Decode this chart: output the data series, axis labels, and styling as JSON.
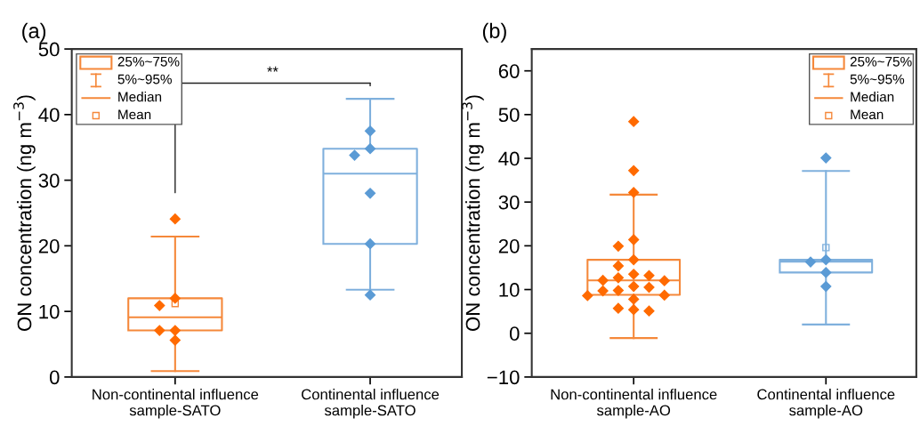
{
  "chart_data": [
    {
      "type": "box",
      "title": "(a)",
      "ylabel": "ON concentration (ng m$^{−3}$)",
      "categories": [
        "Non-continental influence\nsample-SATO",
        "Continental influence\nsample-SATO"
      ],
      "ylim": [
        0,
        50
      ],
      "yticks": [
        0,
        10,
        20,
        30,
        40,
        50
      ],
      "annotations": [
        "25%~75%",
        "5%~95%",
        "Median",
        "Mean",
        "**"
      ],
      "series": [
        {
          "colors": [
            "#f5883a",
            "#7fb0dd"
          ],
          "boxes": [
            {
              "low": 0.9,
              "q1": 7.1,
              "median": 9.1,
              "q3": 12.0,
              "high": 21.4,
              "mean": 11.2
            },
            {
              "low": 13.3,
              "q1": 20.3,
              "median": 31.0,
              "q3": 34.8,
              "high": 42.4
            }
          ]
        },
        {
          "type": "scatter",
          "color": "#ff6a00",
          "marker": "diamond",
          "x": [
            "Non-continental influence\nsample-SATO",
            "Non-continental influence\nsample-SATO",
            "Non-continental influence\nsample-SATO",
            "Non-continental influence\nsample-SATO",
            "Non-continental influence\nsample-SATO",
            "Non-continental influence\nsample-SATO"
          ],
          "values": [
            24.1,
            12.0,
            10.9,
            7.1,
            7.1,
            5.6
          ]
        },
        {
          "type": "scatter",
          "color": "#5b9bd5",
          "marker": "diamond",
          "x": [
            "Continental influence\nsample-SATO",
            "Continental influence\nsample-SATO",
            "Continental influence\nsample-SATO",
            "Continental influence\nsample-SATO",
            "Continental influence\nsample-SATO",
            "Continental influence\nsample-SATO"
          ],
          "values": [
            37.5,
            34.8,
            33.8,
            28.0,
            20.3,
            12.5
          ]
        }
      ]
    },
    {
      "type": "box",
      "title": "(b)",
      "ylabel": "ON concentration (ng m$^{−3}$)",
      "categories": [
        "Non-continental influence\nsample-AO",
        "Continental influence\nsample-AO"
      ],
      "ylim": [
        -10,
        65
      ],
      "yticks": [
        {
          "value": -10,
          "label": "−10"
        },
        0,
        10,
        20,
        30,
        40,
        50,
        60
      ],
      "annotations": [
        "25%~75%",
        "5%~95%",
        "Median",
        "Mean"
      ],
      "series": [
        {
          "colors": [
            "#f5883a",
            "#7fb0dd"
          ],
          "boxes": [
            {
              "low": -1.1,
              "q1": 8.8,
              "median": 12.1,
              "q3": 16.8,
              "high": 31.7
            },
            {
              "low": 2.0,
              "q1": 13.9,
              "median": 16.4,
              "q3": 16.8,
              "high": 37.1,
              "mean": 19.6
            }
          ]
        },
        {
          "type": "scatter",
          "color": "#ff6a00",
          "marker": "diamond",
          "x": [
            "Non-continental influence\nsample-AO",
            "Non-continental influence\nsample-AO",
            "Non-continental influence\nsample-AO",
            "Non-continental influence\nsample-AO",
            "Non-continental influence\nsample-AO",
            "Non-continental influence\nsample-AO",
            "Non-continental influence\nsample-AO",
            "Non-continental influence\nsample-AO",
            "Non-continental influence\nsample-AO",
            "Non-continental influence\nsample-AO",
            "Non-continental influence\nsample-AO",
            "Non-continental influence\nsample-AO",
            "Non-continental influence\nsample-AO",
            "Non-continental influence\nsample-AO",
            "Non-continental influence\nsample-AO",
            "Non-continental influence\nsample-AO",
            "Non-continental influence\nsample-AO",
            "Non-continental influence\nsample-AO",
            "Non-continental influence\nsample-AO",
            "Non-continental influence\nsample-AO",
            "Non-continental influence\nsample-AO",
            "Non-continental influence\nsample-AO"
          ],
          "values": [
            48.4,
            37.2,
            32.2,
            21.4,
            19.9,
            16.8,
            15.4,
            13.5,
            13.2,
            12.7,
            12.1,
            12.0,
            10.7,
            10.5,
            9.8,
            9.7,
            8.7,
            8.6,
            7.8,
            5.7,
            5.4,
            5.1
          ]
        },
        {
          "type": "scatter",
          "color": "#5b9bd5",
          "marker": "diamond",
          "x": [
            "Continental influence\nsample-AO",
            "Continental influence\nsample-AO",
            "Continental influence\nsample-AO",
            "Continental influence\nsample-AO",
            "Continental influence\nsample-AO"
          ],
          "values": [
            40.1,
            16.8,
            16.3,
            13.9,
            10.7
          ]
        }
      ]
    }
  ]
}
